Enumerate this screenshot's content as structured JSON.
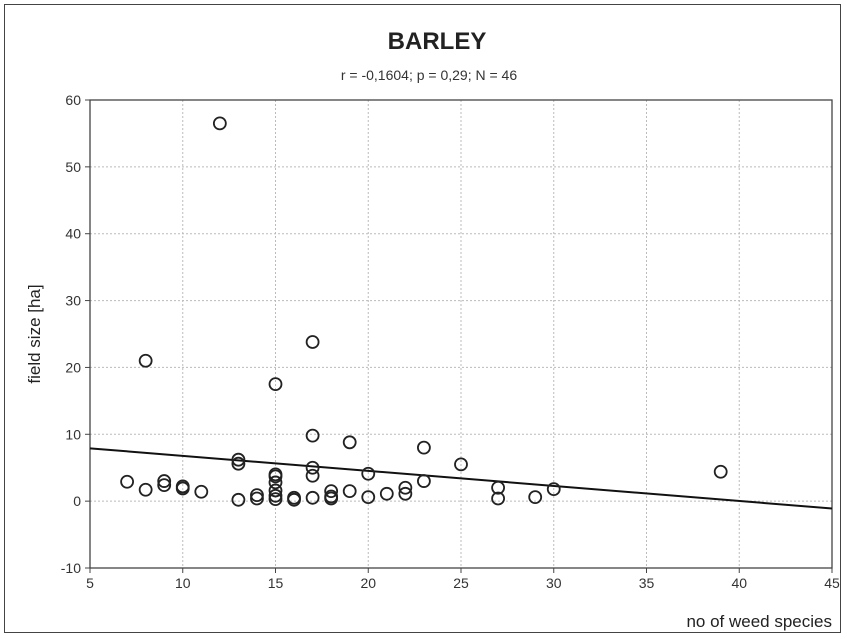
{
  "chart_data": {
    "type": "scatter",
    "title": "BARLEY",
    "subtitle": "r = -0,1604; p = 0,29; N = 46",
    "xlabel": "no of weed species",
    "ylabel": "field size [ha]",
    "xlim": [
      5,
      45
    ],
    "ylim": [
      -10,
      60
    ],
    "xticks": [
      5,
      10,
      15,
      20,
      25,
      30,
      35,
      40,
      45
    ],
    "yticks": [
      -10,
      0,
      10,
      20,
      30,
      40,
      50,
      60
    ],
    "grid": true,
    "points": [
      [
        12,
        56.5
      ],
      [
        8,
        21
      ],
      [
        17,
        23.8
      ],
      [
        15,
        17.5
      ],
      [
        17,
        9.8
      ],
      [
        19,
        8.8
      ],
      [
        23,
        8
      ],
      [
        13,
        6.2
      ],
      [
        13,
        5.6
      ],
      [
        25,
        5.5
      ],
      [
        17,
        5
      ],
      [
        39,
        4.4
      ],
      [
        15,
        4
      ],
      [
        15,
        3.7
      ],
      [
        20,
        4.1
      ],
      [
        17,
        3.8
      ],
      [
        15,
        2.8
      ],
      [
        7,
        2.9
      ],
      [
        9,
        3
      ],
      [
        9,
        2.4
      ],
      [
        10,
        2.2
      ],
      [
        10,
        1.9
      ],
      [
        8,
        1.7
      ],
      [
        11,
        1.4
      ],
      [
        23,
        3
      ],
      [
        22,
        2
      ],
      [
        27,
        2
      ],
      [
        30,
        1.8
      ],
      [
        18,
        1.5
      ],
      [
        19,
        1.5
      ],
      [
        15,
        1.6
      ],
      [
        14,
        0.9
      ],
      [
        14,
        0.4
      ],
      [
        13,
        0.2
      ],
      [
        15,
        0.8
      ],
      [
        16,
        0.5
      ],
      [
        17,
        0.5
      ],
      [
        18,
        0.7
      ],
      [
        20,
        0.6
      ],
      [
        21,
        1.1
      ],
      [
        22,
        1.1
      ],
      [
        27,
        0.4
      ],
      [
        29,
        0.6
      ],
      [
        15,
        0.3
      ],
      [
        16,
        0.2
      ],
      [
        18,
        0.4
      ]
    ],
    "fit_line": {
      "x": [
        5,
        45
      ],
      "y": [
        7.9,
        -1.1
      ]
    }
  }
}
